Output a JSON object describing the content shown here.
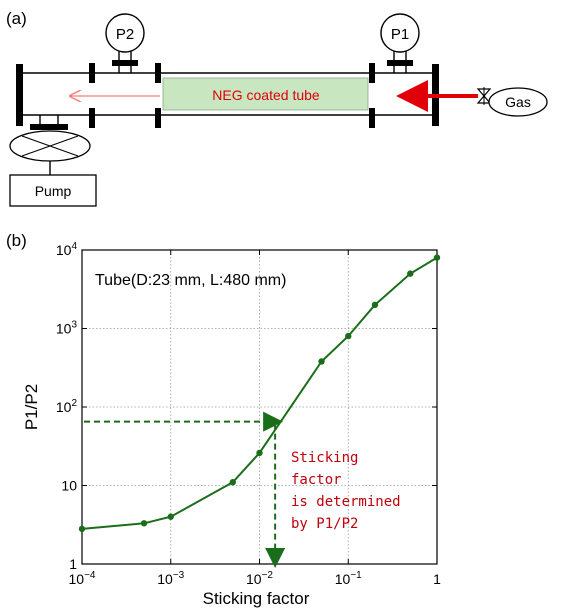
{
  "panel_a": {
    "label": "(a)",
    "gauge_left": "P2",
    "gauge_right": "P1",
    "tube_label": "NEG coated tube",
    "gas_label": "Gas",
    "pump_label": "Pump",
    "colors": {
      "tube_fill": "#c8e6c0",
      "arrow": "#e0000a",
      "flow_arrow_thin": "#f08080"
    }
  },
  "panel_b": {
    "label": "(b)",
    "annotation_lines": [
      "Sticking",
      "factor",
      "is determined",
      "by P1/P2"
    ],
    "annotation_color": "#c0000a",
    "guide_color": "#1a6e1a",
    "guide_point": {
      "x": 0.015,
      "y": 65
    }
  },
  "chart_data": {
    "type": "line",
    "title": "Tube(D:23 mm, L:480 mm)",
    "xlabel": "Sticking factor",
    "ylabel": "P1/P2",
    "x_scale": "log",
    "y_scale": "log",
    "xlim": [
      0.0001,
      1
    ],
    "ylim": [
      1,
      10000
    ],
    "grid": true,
    "x_ticks": [
      {
        "value": 0.0001,
        "base": "10",
        "exp": "−4"
      },
      {
        "value": 0.001,
        "base": "10",
        "exp": "−3"
      },
      {
        "value": 0.01,
        "base": "10",
        "exp": "−2"
      },
      {
        "value": 0.1,
        "base": "10",
        "exp": "−1"
      },
      {
        "value": 1,
        "base": "1",
        "exp": ""
      }
    ],
    "y_ticks": [
      {
        "value": 1,
        "base": "1",
        "exp": ""
      },
      {
        "value": 10,
        "base": "10",
        "exp": ""
      },
      {
        "value": 100,
        "base": "10",
        "exp": "2"
      },
      {
        "value": 1000,
        "base": "10",
        "exp": "3"
      },
      {
        "value": 10000,
        "base": "10",
        "exp": "4"
      }
    ],
    "series": [
      {
        "color": "#1a6e1a",
        "x": [
          0.0001,
          0.0005,
          0.001,
          0.005,
          0.01,
          0.05,
          0.1,
          0.2,
          0.5,
          1
        ],
        "y": [
          2.8,
          3.3,
          4,
          11,
          26,
          380,
          800,
          2000,
          5000,
          8000
        ]
      }
    ]
  }
}
